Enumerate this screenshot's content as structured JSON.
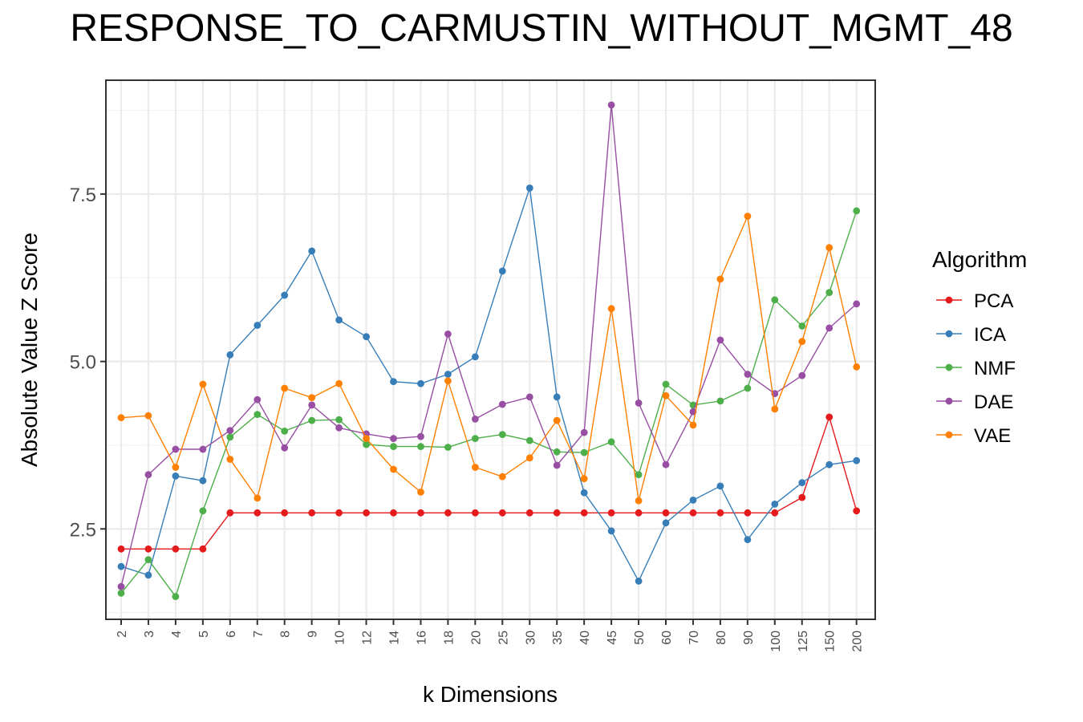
{
  "chart_data": {
    "type": "line",
    "title": "RESPONSE_TO_CARMUSTIN_WITHOUT_MGMT_48",
    "xlabel": "k Dimensions",
    "ylabel": "Absolute Value Z Score",
    "categories": [
      "2",
      "3",
      "4",
      "5",
      "6",
      "7",
      "8",
      "9",
      "10",
      "12",
      "14",
      "16",
      "18",
      "20",
      "25",
      "30",
      "35",
      "40",
      "45",
      "50",
      "60",
      "70",
      "80",
      "90",
      "100",
      "125",
      "150",
      "200"
    ],
    "yticks": [
      2.5,
      5.0,
      7.5
    ],
    "ytick_labels": [
      "2.5",
      "5.0",
      "7.5"
    ],
    "ylim": [
      1.15,
      9.2
    ],
    "grid": true,
    "legend_title": "Algorithm",
    "legend_position": "right",
    "series": [
      {
        "name": "PCA",
        "color": "#e41a1c",
        "values": [
          2.2,
          2.2,
          2.2,
          2.2,
          2.74,
          2.74,
          2.74,
          2.74,
          2.74,
          2.74,
          2.74,
          2.74,
          2.74,
          2.74,
          2.74,
          2.74,
          2.74,
          2.74,
          2.74,
          2.74,
          2.74,
          2.74,
          2.74,
          2.74,
          2.74,
          2.97,
          4.17,
          2.77
        ]
      },
      {
        "name": "ICA",
        "color": "#377eb8",
        "values": [
          1.94,
          1.81,
          3.29,
          3.22,
          5.1,
          5.54,
          5.99,
          6.65,
          5.62,
          5.37,
          4.7,
          4.67,
          4.81,
          5.07,
          6.35,
          7.59,
          4.47,
          3.04,
          2.47,
          1.72,
          2.59,
          2.93,
          3.14,
          2.34,
          2.87,
          3.19,
          3.46,
          3.52
        ]
      },
      {
        "name": "NMF",
        "color": "#4daf4a",
        "values": [
          1.54,
          2.04,
          1.49,
          2.77,
          3.87,
          4.21,
          3.96,
          4.12,
          4.13,
          3.76,
          3.73,
          3.73,
          3.72,
          3.85,
          3.91,
          3.82,
          3.65,
          3.64,
          3.8,
          3.31,
          4.66,
          4.35,
          4.41,
          4.6,
          5.92,
          5.53,
          6.03,
          7.25
        ]
      },
      {
        "name": "DAE",
        "color": "#984ea3",
        "values": [
          1.64,
          3.31,
          3.69,
          3.69,
          3.97,
          4.43,
          3.71,
          4.35,
          4.01,
          3.92,
          3.85,
          3.88,
          5.41,
          4.14,
          4.36,
          4.47,
          3.45,
          3.94,
          8.83,
          4.38,
          3.46,
          4.25,
          5.32,
          4.81,
          4.52,
          4.79,
          5.5,
          5.86
        ]
      },
      {
        "name": "VAE",
        "color": "#ff7f00",
        "values": [
          4.16,
          4.19,
          3.42,
          4.66,
          3.54,
          2.96,
          4.6,
          4.46,
          4.67,
          3.85,
          3.39,
          3.05,
          4.71,
          3.42,
          3.28,
          3.56,
          4.12,
          3.25,
          5.79,
          2.92,
          4.49,
          4.05,
          6.23,
          7.17,
          4.29,
          5.3,
          6.7,
          4.92
        ]
      }
    ]
  }
}
